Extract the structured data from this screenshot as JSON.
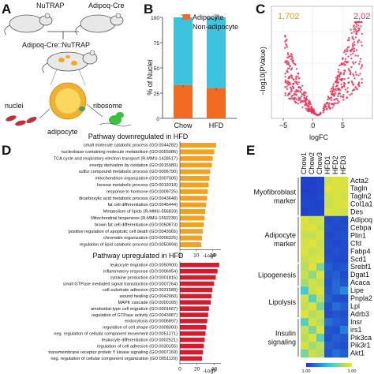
{
  "panel_labels": [
    "A",
    "B",
    "C",
    "D",
    "E"
  ],
  "panelA": {
    "mouse_labels": [
      "NuTRAP",
      "Adipoq-Cre",
      "Adipoq-Cre::NuTRAP"
    ],
    "cell_labels": [
      "nuclei",
      "ribosome",
      "adipocyte"
    ]
  },
  "chart_data": [
    {
      "type": "bar",
      "panel": "B",
      "stacked": true,
      "categories": [
        "Chow",
        "HFD"
      ],
      "series": [
        {
          "name": "Adipocyte",
          "color": "#f26b22",
          "values": [
            33,
            30
          ]
        },
        {
          "name": "Non-adipocyte",
          "color": "#3ec3de",
          "values": [
            67,
            70
          ]
        }
      ],
      "ylabel": "% of Nuclei",
      "ylim": [
        0,
        100
      ],
      "yticks": [
        "0",
        "25",
        "50",
        "75",
        "100"
      ],
      "legend": "top-right"
    },
    {
      "type": "scatter",
      "panel": "C",
      "xlabel": "logFC",
      "ylabel": "−log10(PValue)",
      "xticks": [
        "−5",
        "0",
        "5"
      ],
      "xlim": [
        -7,
        10
      ],
      "counts": {
        "down": "1,702",
        "up": "2,02"
      },
      "point_color": "#e8345a"
    },
    {
      "type": "bar",
      "panel": "D",
      "orientation": "horizontal",
      "xlabel": "-LogP",
      "groups": [
        {
          "title": "Pathway downregulated in HFD",
          "color": "#f0a323",
          "xticks": [
            "0",
            "10",
            "20"
          ],
          "xlim": [
            0,
            25
          ],
          "categories": [
            "small molecule catabolic process (GO:0044282)",
            "nucleobase-containing molecule metabolism (GO:0055086)",
            "TCA cycle and respiratory electron transport (R-MMU-1428517)",
            "energy derivation by oxidation (GO:0015980)",
            "sulfur compound metabolic process (GO:0006790)",
            "mitochondrion organization (GO:0007005)",
            "hexose metabolic process (GO:0019318)",
            "response to hormone (GO:0009725)",
            "dicarboxylic acid metabolic process (GO:0043648)",
            "fat cell differentiation (GO:0045444)",
            "Metabolism of lipids (R-MMU-556833)",
            "Mitochondrial biogenesis (R-MMU-1592230)",
            "brown fat cell differentiation (GO:0050873)",
            "positive regulation of apoptotic cell death (GO:0043065)",
            "chromatin organization (GO:0006325)",
            "regulation of lipid catabolic process (GO:0050994)"
          ],
          "values": [
            22,
            21,
            20,
            19.5,
            18.5,
            18,
            17.5,
            17,
            16.5,
            16,
            15.5,
            15,
            14.5,
            14,
            13.5,
            13
          ]
        },
        {
          "title": "Pathway upregulated in HFD",
          "color": "#d21c30",
          "xticks": [
            "0",
            "20",
            "40"
          ],
          "xlim": [
            0,
            48
          ],
          "categories": [
            "leukocyte migration (GO:0050900)",
            "inflammatory response (GO:0006954)",
            "cytokine production (GO:0001816)",
            "small GTPase mediated signal transduction (GO:0007264)",
            "cell-substrate adhesion (GO:0031589)",
            "wound healing (GO:0042060)",
            "MAPK cascade (GO:0000165)",
            "ameboidal-type cell migration (GO:0001667)",
            "regulation of GTPase activity (GO:0043087)",
            "endocytosis (GO:0006897)",
            "regulation of cell shape (GO:0008360)",
            "neg. regulation of cellular component movement (GO:0051271)",
            "leukocyte differentiation (GO:0002521)",
            "regulation of cell adhesion (GO:0030155)",
            "transmembrane receptor protein Y kinase signaling (GO:0007169)",
            "neg. regulation of cellular component organization (GO:0051129)"
          ],
          "values": [
            46,
            44,
            42,
            40,
            38,
            37,
            36,
            34,
            33,
            32,
            31,
            30,
            29,
            28,
            27,
            26
          ]
        }
      ]
    },
    {
      "type": "heatmap",
      "panel": "E",
      "columns": [
        "Chow1",
        "Chow2",
        "Chow3",
        "HFD1",
        "HFD2",
        "HFD3"
      ],
      "rows": [
        "Acta2",
        "Tagln",
        "Tagln2",
        "Col1a1",
        "Des",
        "Adipoq",
        "Cebpa",
        "Plin1",
        "Cfd",
        "Fabp4",
        "Scd1",
        "Srebf1",
        "Dgat1",
        "Acaca",
        "Lipe",
        "Pnpla2",
        "Lpl",
        "Adrb3",
        "Insr",
        "irs1",
        "Pik3ca",
        "Pik3r1",
        "Akt1"
      ],
      "groups": [
        {
          "name": "Myofibroblast marker",
          "rows": [
            0,
            4
          ]
        },
        {
          "name": "Adipocyte marker",
          "rows": [
            5,
            10
          ]
        },
        {
          "name": "Lipogenesis",
          "rows": [
            11,
            13
          ]
        },
        {
          "name": "Lipolysis",
          "rows": [
            14,
            17
          ]
        },
        {
          "name": "Insulin signaling",
          "rows": [
            18,
            22
          ]
        }
      ],
      "values": [
        [
          0.05,
          0.04,
          0.06,
          0.92,
          0.95,
          0.93
        ],
        [
          0.04,
          0.05,
          0.06,
          0.96,
          0.93,
          0.94
        ],
        [
          0.06,
          0.05,
          0.07,
          0.91,
          0.94,
          0.92
        ],
        [
          0.07,
          0.06,
          0.05,
          0.9,
          0.93,
          0.95
        ],
        [
          0.05,
          0.07,
          0.06,
          0.94,
          0.92,
          0.91
        ],
        [
          0.95,
          0.9,
          0.92,
          0.08,
          0.1,
          0.07
        ],
        [
          0.93,
          0.95,
          0.9,
          0.1,
          0.08,
          0.09
        ],
        [
          0.9,
          0.88,
          0.94,
          0.07,
          0.09,
          0.1
        ],
        [
          0.92,
          0.96,
          0.9,
          0.09,
          0.07,
          0.08
        ],
        [
          0.94,
          0.89,
          0.92,
          0.08,
          0.1,
          0.08
        ],
        [
          0.9,
          0.92,
          0.95,
          0.1,
          0.08,
          0.07
        ],
        [
          0.85,
          0.95,
          0.7,
          0.15,
          0.1,
          0.12
        ],
        [
          0.9,
          0.75,
          0.95,
          0.12,
          0.15,
          0.08
        ],
        [
          0.8,
          0.92,
          0.88,
          0.1,
          0.18,
          0.12
        ],
        [
          0.55,
          0.9,
          0.95,
          0.12,
          0.18,
          0.3
        ],
        [
          0.92,
          0.6,
          0.88,
          0.15,
          0.1,
          0.08
        ],
        [
          0.88,
          0.95,
          0.7,
          0.1,
          0.2,
          0.15
        ],
        [
          0.95,
          0.85,
          0.9,
          0.08,
          0.12,
          0.1
        ],
        [
          0.6,
          0.92,
          0.85,
          0.2,
          0.15,
          0.12
        ],
        [
          0.9,
          0.7,
          0.95,
          0.12,
          0.1,
          0.25
        ],
        [
          0.85,
          0.95,
          0.6,
          0.1,
          0.15,
          0.12
        ],
        [
          0.92,
          0.8,
          0.88,
          0.15,
          0.12,
          0.1
        ],
        [
          0.7,
          0.9,
          0.85,
          0.12,
          0.2,
          0.15
        ]
      ],
      "colorbar_ticks": [
        "1.00",
        "1.00"
      ],
      "colors": {
        "low": "#1e32c8",
        "mid": "#2fc8e6",
        "high": "#f0e628"
      }
    }
  ]
}
